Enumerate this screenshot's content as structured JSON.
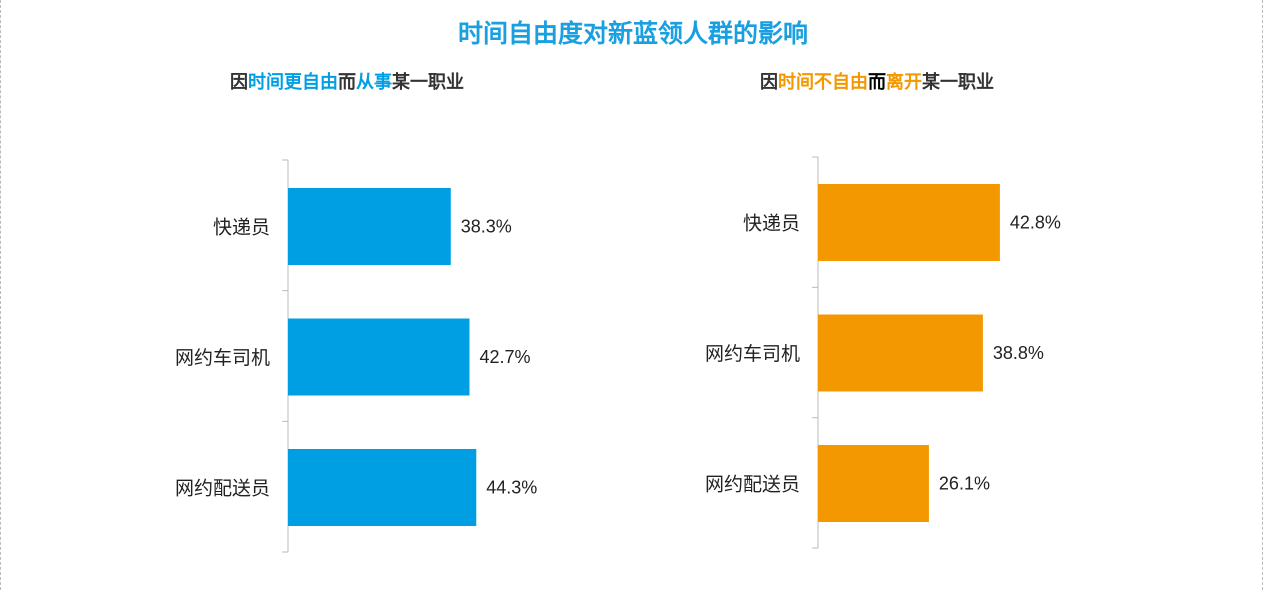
{
  "title": "时间自由度对新蓝领人群的影响",
  "colors": {
    "title": "#1aa0e0",
    "blue": "#009fe3",
    "orange": "#f39800",
    "dark": "#333333",
    "black": "#000000"
  },
  "chart_data": [
    {
      "type": "bar",
      "orientation": "horizontal",
      "title_parts": [
        {
          "text": "因",
          "color": "dark"
        },
        {
          "text": "时间更自由",
          "color": "blue"
        },
        {
          "text": "而",
          "color": "dark"
        },
        {
          "text": "从事",
          "color": "blue"
        },
        {
          "text": "某一职业",
          "color": "dark"
        }
      ],
      "categories": [
        "快递员",
        "网约车司机",
        "网约配送员"
      ],
      "values": [
        38.3,
        42.7,
        44.3
      ],
      "labels": [
        "38.3%",
        "42.7%",
        "44.3%"
      ],
      "bar_color": "#009fe3",
      "xlim": [
        0,
        50
      ],
      "grid": false
    },
    {
      "type": "bar",
      "orientation": "horizontal",
      "title_parts": [
        {
          "text": "因",
          "color": "dark"
        },
        {
          "text": "时间不自由",
          "color": "orange"
        },
        {
          "text": "而",
          "color": "black"
        },
        {
          "text": "离开",
          "color": "orange"
        },
        {
          "text": "某一职业",
          "color": "dark"
        }
      ],
      "categories": [
        "快递员",
        "网约车司机",
        "网约配送员"
      ],
      "values": [
        42.8,
        38.8,
        26.1
      ],
      "labels": [
        "42.8%",
        "38.8%",
        "26.1%"
      ],
      "bar_color": "#f39800",
      "xlim": [
        0,
        50
      ],
      "grid": false
    }
  ]
}
